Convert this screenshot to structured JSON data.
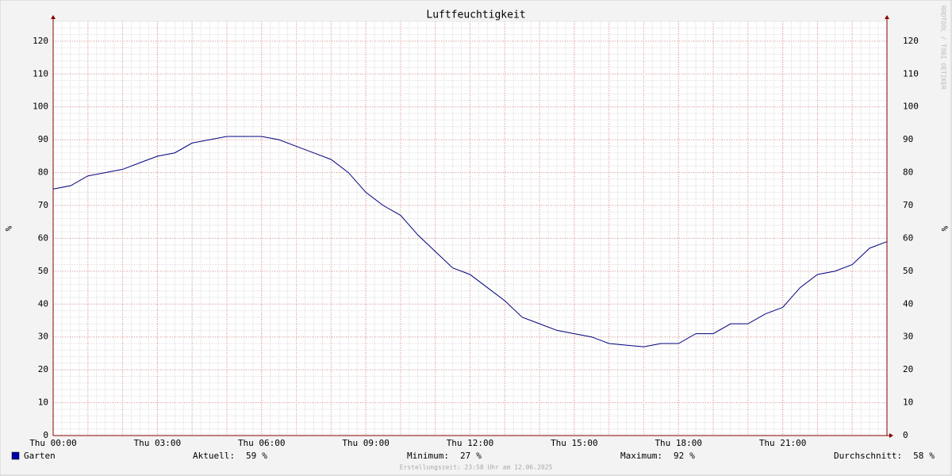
{
  "chart_data": {
    "type": "line",
    "title": "Luftfeuchtigkeit",
    "y_label": "%",
    "y2_label": "%",
    "watermark": "RRDTOOL / TOBI OETIKER",
    "footer": "Erstellungszeit: 23:58 Uhr am 12.06.2025",
    "x": [
      0,
      0.5,
      1,
      1.5,
      2,
      2.5,
      3,
      3.5,
      4,
      4.5,
      5,
      5.5,
      6,
      6.5,
      7,
      7.5,
      8,
      8.5,
      9,
      9.5,
      10,
      10.5,
      11,
      11.5,
      12,
      12.5,
      13,
      13.5,
      14,
      14.5,
      15,
      15.5,
      16,
      16.5,
      17,
      17.5,
      18,
      18.5,
      19,
      19.5,
      20,
      20.5,
      21,
      21.5,
      22,
      22.5,
      23,
      23.5,
      24
    ],
    "series": [
      {
        "name": "Garten",
        "color": "#00007f",
        "legend_color": "#0000aa",
        "values": [
          75,
          76,
          79,
          80,
          81,
          83,
          85,
          86,
          89,
          90,
          91,
          91,
          91,
          90,
          88,
          86,
          84,
          80,
          74,
          70,
          67,
          61,
          56,
          51,
          49,
          45,
          41,
          36,
          34,
          32,
          31,
          30,
          28,
          27.5,
          27,
          28,
          28,
          31,
          31,
          34,
          34,
          37,
          39,
          45,
          49,
          50,
          52,
          57,
          59
        ]
      }
    ],
    "xlim": [
      0,
      24
    ],
    "xticks": [
      {
        "value": 0,
        "label": "Thu 00:00"
      },
      {
        "value": 3,
        "label": "Thu 03:00"
      },
      {
        "value": 6,
        "label": "Thu 06:00"
      },
      {
        "value": 9,
        "label": "Thu 09:00"
      },
      {
        "value": 12,
        "label": "Thu 12:00"
      },
      {
        "value": 15,
        "label": "Thu 15:00"
      },
      {
        "value": 18,
        "label": "Thu 18:00"
      },
      {
        "value": 21,
        "label": "Thu 21:00"
      }
    ],
    "ylim": [
      0,
      126
    ],
    "yticks": [
      0,
      10,
      20,
      30,
      40,
      50,
      60,
      70,
      80,
      90,
      100,
      110,
      120
    ],
    "grid": true,
    "stats": [
      {
        "label": "Aktuell:",
        "value": 59,
        "unit": "%"
      },
      {
        "label": "Minimum:",
        "value": 27,
        "unit": "%"
      },
      {
        "label": "Maximum:",
        "value": 92,
        "unit": "%"
      },
      {
        "label": "Durchschnitt:",
        "value": 58,
        "unit": "%"
      }
    ]
  }
}
